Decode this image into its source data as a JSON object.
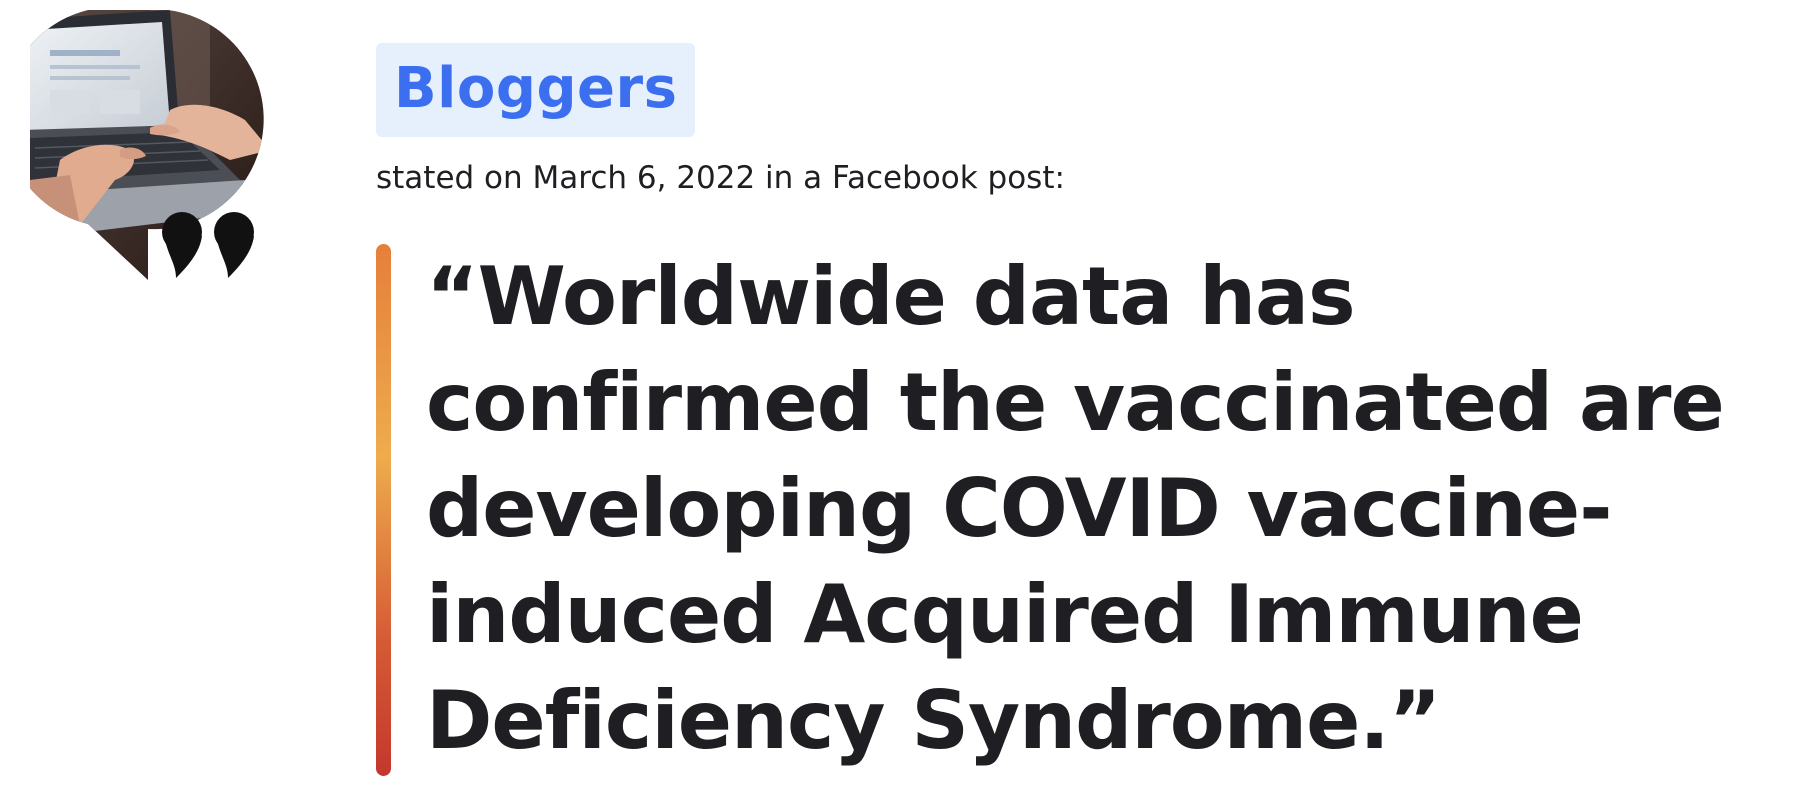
{
  "speaker": {
    "name": "Bloggers",
    "attribution": "stated on March 6, 2022 in a Facebook post:"
  },
  "statement": {
    "quote": "“Worldwide data has confirmed the vaccinated are developing COVID vaccine-induced Acquired Immune Deficiency Syndrome.”"
  },
  "colors": {
    "speaker_badge_bg": "#e6effc",
    "speaker_text": "#3b6ff0",
    "quote_text": "#1f1f23",
    "accent_bar_top": "#e57f3b",
    "accent_bar_bottom": "#c3382c"
  },
  "icons": {
    "avatar": "speaker-avatar-laptop-photo",
    "quote_mark": "quotation-mark-icon"
  }
}
